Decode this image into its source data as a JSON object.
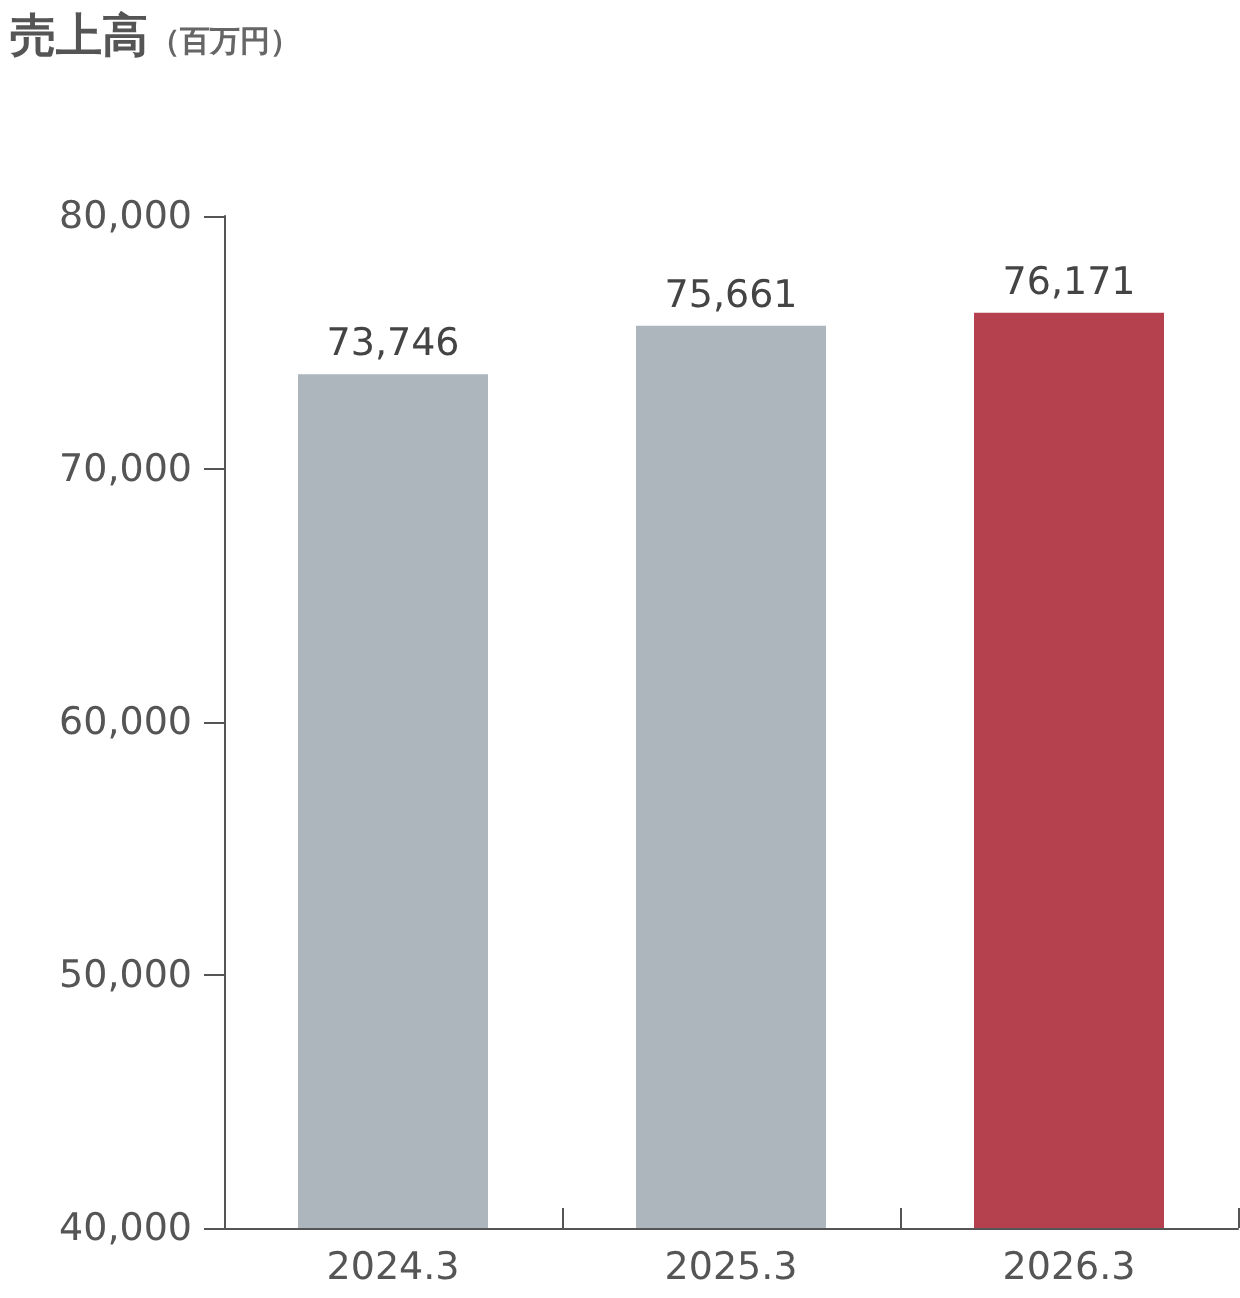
{
  "chart_data": {
    "type": "bar",
    "title": "売上高",
    "subtitle": "（百万円）",
    "categories": [
      "2024.3",
      "2025.3",
      "2026.3"
    ],
    "values": [
      73746,
      75661,
      76171
    ],
    "colors": [
      "#adb5bd",
      "#adb5bd",
      "#b5404e"
    ],
    "ylim": [
      40000,
      80000
    ],
    "yticks": [
      {
        "value": 40000,
        "label": "40,000"
      },
      {
        "value": 50000,
        "label": "50,000"
      },
      {
        "value": 60000,
        "label": "60,000"
      },
      {
        "value": 70000,
        "label": "70,000"
      },
      {
        "value": 80000,
        "label": "80,000"
      }
    ],
    "value_labels": [
      "73,746",
      "75,661",
      "76,171"
    ],
    "grid": false
  }
}
